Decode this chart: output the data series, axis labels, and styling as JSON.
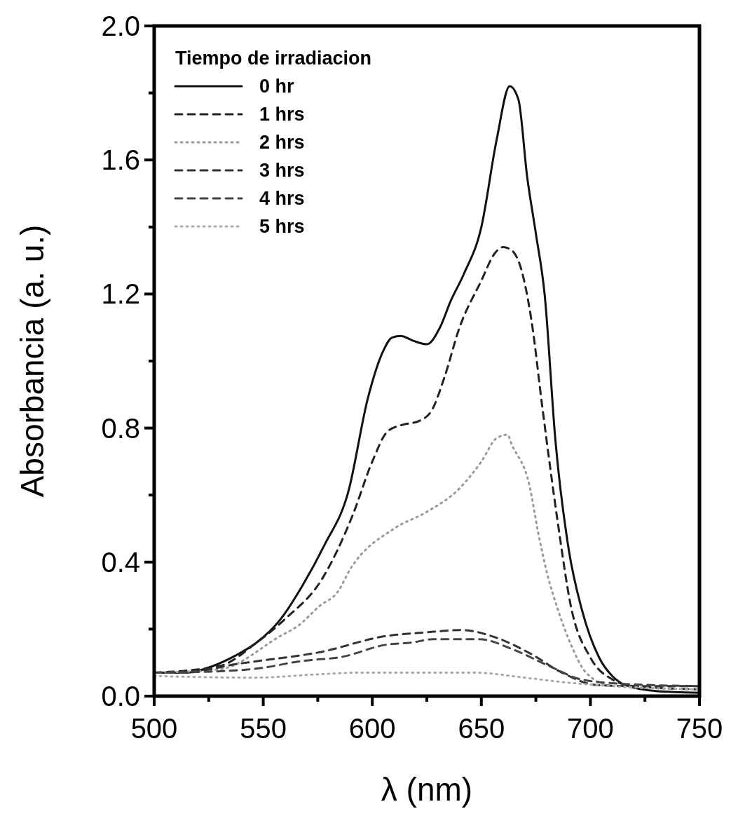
{
  "chart_data": {
    "type": "line",
    "xlabel": "λ (nm)",
    "ylabel": "Absorbancia (a. u.)",
    "legend_title": "Tiempo de irradiacion",
    "legend": "top left",
    "grid": false,
    "xlim": [
      500,
      750
    ],
    "ylim": [
      0,
      2
    ],
    "xticks": [
      500,
      {
        "value": 525,
        "label": null
      },
      550,
      {
        "value": 575,
        "label": null
      },
      600,
      {
        "value": 625,
        "label": null
      },
      650,
      {
        "value": 675,
        "label": null
      },
      700,
      {
        "value": 725,
        "label": null
      },
      750
    ],
    "yticks": [
      {
        "value": 0,
        "label": "0.0"
      },
      {
        "value": 0.2,
        "label": null
      },
      {
        "value": 0.4,
        "label": "0.4"
      },
      {
        "value": 0.6,
        "label": null
      },
      {
        "value": 0.8,
        "label": "0.8"
      },
      {
        "value": 1,
        "label": null
      },
      {
        "value": 1.2,
        "label": "1.2"
      },
      {
        "value": 1.4,
        "label": null
      },
      {
        "value": 1.6,
        "label": "1.6"
      },
      {
        "value": 1.8,
        "label": null
      },
      {
        "value": 2,
        "label": "2.0"
      }
    ],
    "series": [
      {
        "name": "0 hr",
        "color": "#111111",
        "line_style": "solid",
        "x": [
          500,
          515,
          527,
          537,
          547,
          558,
          568,
          578,
          589,
          598,
          605,
          609,
          613,
          619,
          625,
          631,
          636,
          642,
          650,
          657,
          663,
          667,
          671,
          675,
          679,
          684,
          690,
          696,
          704,
          710,
          716,
          730,
          750
        ],
        "values": [
          0.07,
          0.07,
          0.09,
          0.12,
          0.16,
          0.23,
          0.33,
          0.45,
          0.61,
          0.89,
          1.03,
          1.07,
          1.075,
          1.06,
          1.05,
          1.1,
          1.18,
          1.26,
          1.4,
          1.66,
          1.82,
          1.78,
          1.55,
          1.38,
          1.2,
          0.76,
          0.44,
          0.26,
          0.115,
          0.06,
          0.033,
          0.015,
          0.01
        ]
      },
      {
        "name": "1 hrs",
        "color": "#222222",
        "line_style": "dashed",
        "x": [
          500,
          530,
          547,
          560,
          577,
          591,
          600,
          607,
          614,
          621,
          627,
          633,
          640,
          650,
          656,
          660,
          664,
          668,
          673,
          678,
          685,
          691,
          700,
          710,
          720,
          750
        ],
        "values": [
          0.07,
          0.09,
          0.16,
          0.23,
          0.35,
          0.54,
          0.7,
          0.79,
          0.81,
          0.82,
          0.85,
          0.95,
          1.1,
          1.24,
          1.32,
          1.34,
          1.33,
          1.28,
          1.12,
          0.86,
          0.52,
          0.27,
          0.115,
          0.05,
          0.03,
          0.02
        ]
      },
      {
        "name": "2 hrs",
        "color": "#999999",
        "line_style": "dotted",
        "x": [
          500,
          530,
          558,
          566,
          576,
          584,
          590,
          610,
          625,
          640,
          650,
          657,
          662,
          664,
          672,
          676,
          680,
          685,
          691,
          698,
          710,
          750
        ],
        "values": [
          0.07,
          0.08,
          0.18,
          0.21,
          0.27,
          0.31,
          0.38,
          0.5,
          0.55,
          0.62,
          0.7,
          0.77,
          0.78,
          0.75,
          0.63,
          0.49,
          0.37,
          0.26,
          0.155,
          0.07,
          0.03,
          0.02
        ]
      },
      {
        "name": "3 hrs",
        "color": "#333333",
        "line_style": "dashed",
        "x": [
          500,
          520,
          538,
          548,
          575,
          607,
          624,
          641,
          657,
          673,
          687,
          703,
          720,
          750
        ],
        "values": [
          0.07,
          0.075,
          0.096,
          0.105,
          0.13,
          0.18,
          0.19,
          0.197,
          0.174,
          0.125,
          0.07,
          0.033,
          0.03,
          0.03
        ]
      },
      {
        "name": "4 hrs",
        "color": "#444444",
        "line_style": "dashed",
        "x": [
          500,
          520,
          548,
          568,
          586,
          606,
          618,
          628,
          649,
          665,
          681,
          697,
          720,
          750
        ],
        "values": [
          0.07,
          0.072,
          0.083,
          0.105,
          0.117,
          0.153,
          0.16,
          0.17,
          0.17,
          0.138,
          0.09,
          0.048,
          0.035,
          0.03
        ]
      },
      {
        "name": "5 hrs",
        "color": "#aaaaaa",
        "line_style": "dotted",
        "x": [
          500,
          546,
          575,
          594,
          620,
          647,
          670,
          690,
          710,
          750
        ],
        "values": [
          0.06,
          0.055,
          0.065,
          0.07,
          0.07,
          0.07,
          0.055,
          0.04,
          0.03,
          0.02
        ]
      }
    ]
  }
}
